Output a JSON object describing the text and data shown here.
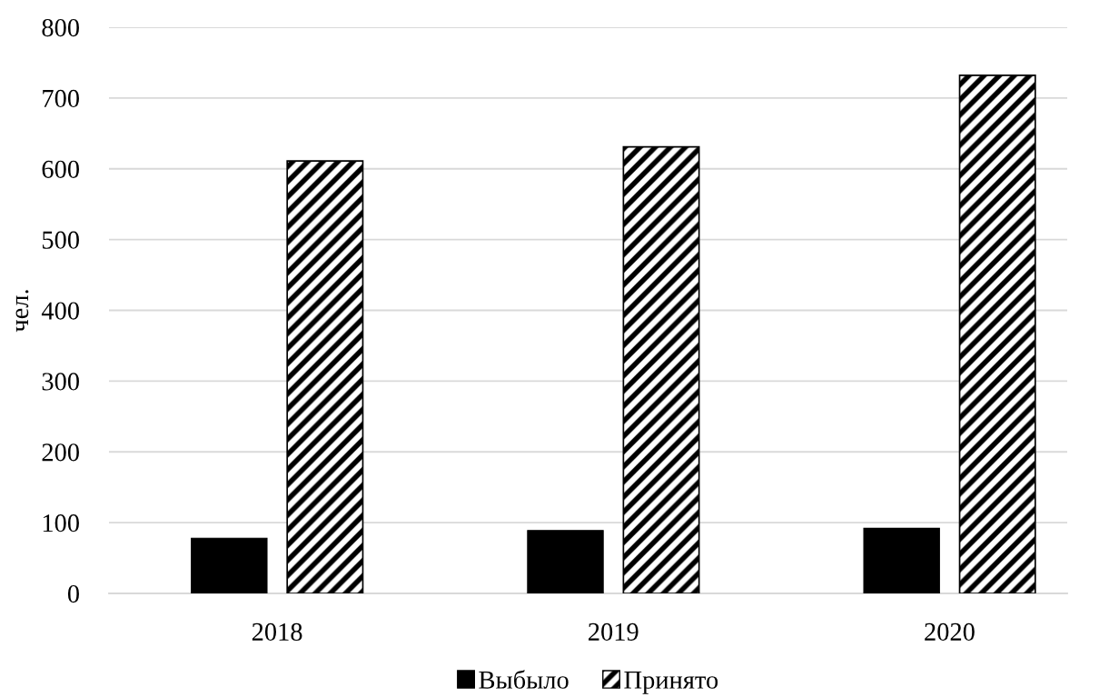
{
  "chart_data": {
    "type": "bar",
    "ylabel": "чел.",
    "categories": [
      "2018",
      "2019",
      "2020"
    ],
    "series": [
      {
        "name": "Выбыло",
        "color": "#000000",
        "values": [
          78,
          89,
          92
        ]
      },
      {
        "name": "Принято",
        "color": "#000000",
        "values": [
          611,
          631,
          732
        ]
      }
    ],
    "ylim": [
      0,
      800
    ],
    "yticks": [
      0,
      100,
      200,
      300,
      400,
      500,
      600,
      700,
      800
    ],
    "grid": "y",
    "legend": "bottom"
  }
}
